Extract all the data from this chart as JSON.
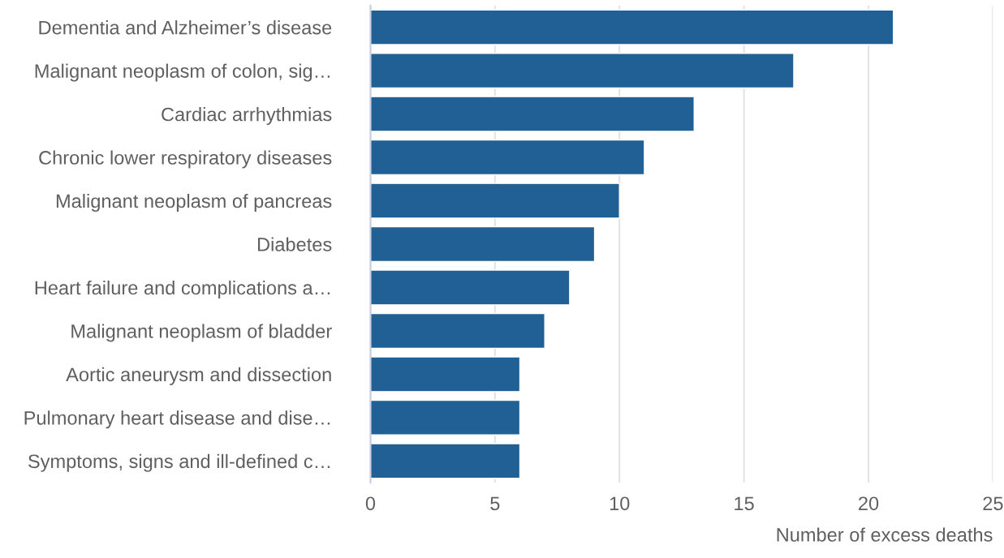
{
  "chart_data": {
    "type": "bar",
    "orientation": "horizontal",
    "categories": [
      "Dementia and Alzheimer’s disease",
      "Malignant neoplasm of colon, sig…",
      "Cardiac arrhythmias",
      "Chronic lower respiratory diseases",
      "Malignant neoplasm of pancreas",
      "Diabetes",
      "Heart failure and complications a…",
      "Malignant neoplasm of bladder",
      "Aortic aneurysm and dissection",
      "Pulmonary heart disease and dise…",
      "Symptoms, signs and ill-defined c…"
    ],
    "values": [
      21,
      17,
      13,
      11,
      10,
      9,
      8,
      7,
      6,
      6,
      6
    ],
    "color": "#206095",
    "xlabel": "Number of excess deaths",
    "xlim": [
      0,
      25
    ],
    "xticks": [
      0,
      5,
      10,
      15,
      20,
      25
    ],
    "grid": "x",
    "legend": false
  }
}
